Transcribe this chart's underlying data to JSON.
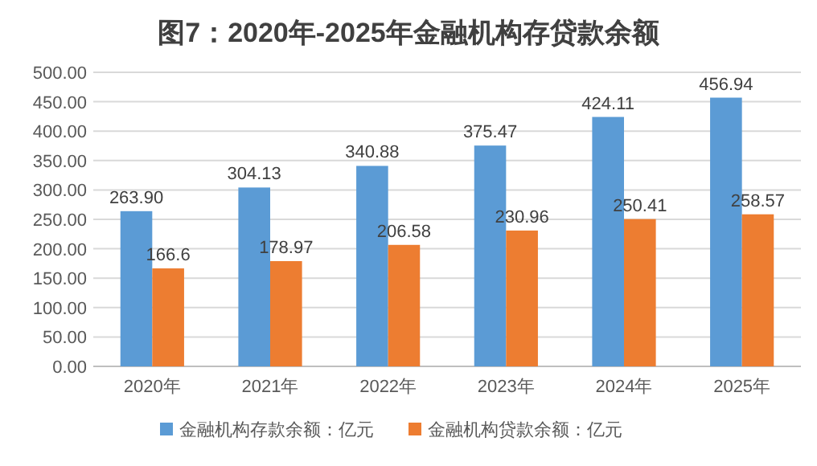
{
  "chart_data": {
    "type": "bar",
    "title": "图7：2020年-2025年金融机构存贷款余额",
    "categories": [
      "2020年",
      "2021年",
      "2022年",
      "2023年",
      "2024年",
      "2025年"
    ],
    "series": [
      {
        "name": "金融机构存款余额：亿元",
        "color": "#5b9bd5",
        "values": [
          263.9,
          304.13,
          340.88,
          375.47,
          424.11,
          456.94
        ],
        "value_labels": [
          "263.90",
          "304.13",
          "340.88",
          "375.47",
          "424.11",
          "456.94"
        ]
      },
      {
        "name": "金融机构贷款余额：亿元",
        "color": "#ed7d31",
        "values": [
          166.6,
          178.97,
          206.58,
          230.96,
          250.41,
          258.57
        ],
        "value_labels": [
          "166.6",
          "178.97",
          "206.58",
          "230.96",
          "250.41",
          "258.57"
        ]
      }
    ],
    "ylim": [
      0,
      500
    ],
    "yticks": [
      {
        "value": 0,
        "label": "0.00"
      },
      {
        "value": 50,
        "label": "50.00"
      },
      {
        "value": 100,
        "label": "100.00"
      },
      {
        "value": 150,
        "label": "150.00"
      },
      {
        "value": 200,
        "label": "200.00"
      },
      {
        "value": 250,
        "label": "250.00"
      },
      {
        "value": 300,
        "label": "300.00"
      },
      {
        "value": 350,
        "label": "350.00"
      },
      {
        "value": 400,
        "label": "400.00"
      },
      {
        "value": 450,
        "label": "450.00"
      },
      {
        "value": 500,
        "label": "500.00"
      }
    ],
    "grid": "y",
    "legend": "bottom"
  }
}
